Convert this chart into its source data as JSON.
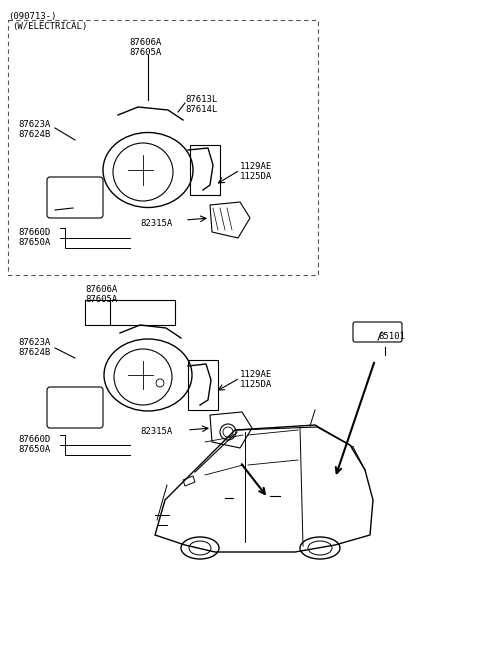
{
  "bg_color": "#ffffff",
  "fig_width": 4.8,
  "fig_height": 6.56,
  "dpi": 100,
  "top_label": "(090713-)",
  "electrical_box_label": "(W/ELECTRICAL)",
  "parts_upper": {
    "87606A_87605A": "87606A\n87605A",
    "87613L_87614L": "87613L\n87614L",
    "87623A_87624B": "87623A\n87624B",
    "1129AE_1125DA": "1129AE\n1125DA",
    "82315A": "82315A",
    "87660D_87650A": "87660D\n87650A"
  },
  "parts_lower": {
    "87606A_87605A": "87606A\n87605A",
    "87623A_87624B": "87623A\n87624B",
    "1129AE_1125DA": "1129AE\n1125DA",
    "82315A": "82315A",
    "87660D_87650A": "87660D\n87650A",
    "85101": "85101"
  }
}
